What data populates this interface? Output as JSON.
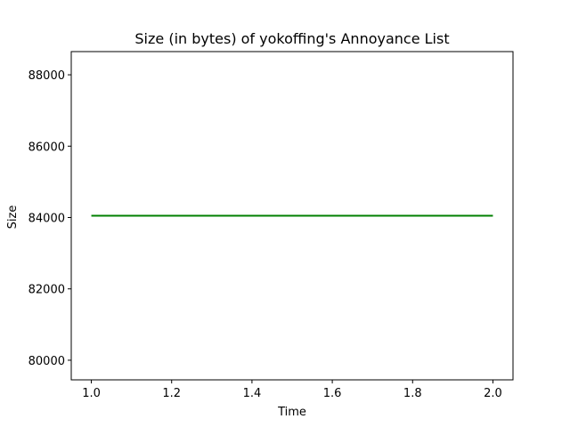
{
  "chart_data": {
    "type": "line",
    "title": "Size (in bytes) of yokoffing's Annoyance List",
    "xlabel": "Time",
    "ylabel": "Size",
    "xlim": [
      0.95,
      2.05
    ],
    "ylim": [
      79450,
      88650
    ],
    "xticks": [
      1.0,
      1.2,
      1.4,
      1.6,
      1.8,
      2.0
    ],
    "xtick_labels": [
      "1.0",
      "1.2",
      "1.4",
      "1.6",
      "1.8",
      "2.0"
    ],
    "yticks": [
      80000,
      82000,
      84000,
      86000,
      88000
    ],
    "ytick_labels": [
      "80000",
      "82000",
      "84000",
      "86000",
      "88000"
    ],
    "grid": false,
    "series": [
      {
        "color": "#008000",
        "x": [
          1.0,
          2.0
        ],
        "y": [
          84050,
          84050
        ]
      }
    ]
  }
}
